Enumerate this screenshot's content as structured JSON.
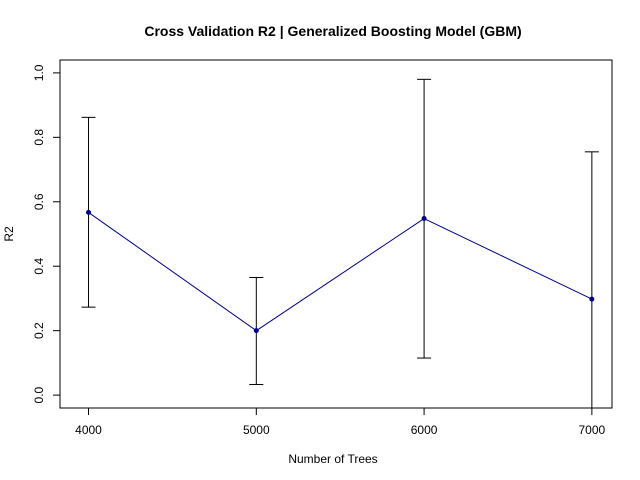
{
  "chart_data": {
    "type": "line",
    "title": "Cross Validation R2 | Generalized Boosting Model (GBM)",
    "xlabel": "Number of Trees",
    "ylabel": "R2",
    "x": [
      4000,
      5000,
      6000,
      7000
    ],
    "xticks": [
      "4000",
      "5000",
      "6000",
      "7000"
    ],
    "xlim": [
      3830,
      7120
    ],
    "ylim": [
      -0.04,
      1.04
    ],
    "yticks": [
      "0.0",
      "0.2",
      "0.4",
      "0.6",
      "0.8",
      "1.0"
    ],
    "ytick_values": [
      0.0,
      0.2,
      0.4,
      0.6,
      0.8,
      1.0
    ],
    "series": [
      {
        "values": [
          0.567,
          0.2,
          0.548,
          0.298
        ],
        "error_low": [
          0.273,
          0.033,
          0.115,
          -0.04
        ],
        "error_high": [
          0.862,
          0.365,
          0.98,
          0.755
        ],
        "line_color": "#00008b",
        "marker_color": "#00008b",
        "error_color": "#000000"
      }
    ],
    "grid": false,
    "legend": "none"
  }
}
